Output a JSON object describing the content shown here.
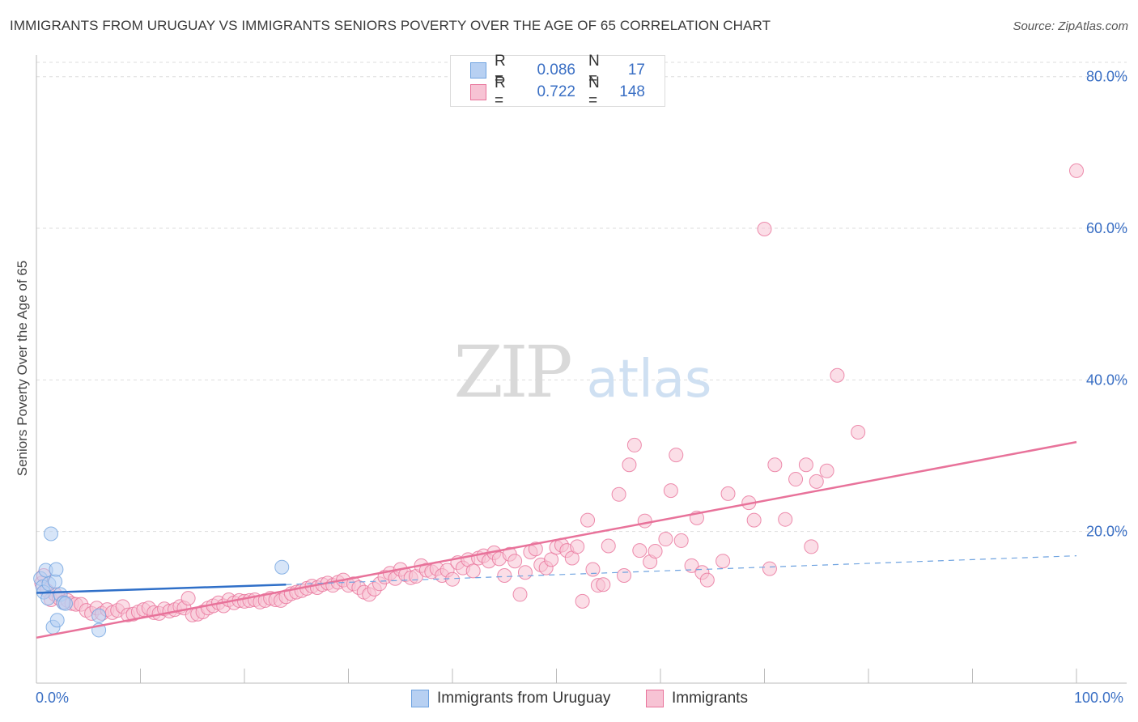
{
  "title": "IMMIGRANTS FROM URUGUAY VS IMMIGRANTS SENIORS POVERTY OVER THE AGE OF 65 CORRELATION CHART",
  "source": "Source: ZipAtlas.com",
  "watermark": {
    "zip": "ZIP",
    "atlas": "atlas"
  },
  "legend": {
    "rows": [
      {
        "r_label": "R =",
        "r_value": "0.086",
        "n_label": "N =",
        "n_value": "17"
      },
      {
        "r_label": "R =",
        "r_value": "0.722",
        "n_label": "N =",
        "n_value": "148"
      }
    ]
  },
  "x_tick_labels": {
    "min": "0.0%",
    "max": "100.0%"
  },
  "chart_data": {
    "type": "scatter",
    "title": "IMMIGRANTS FROM URUGUAY VS IMMIGRANTS SENIORS POVERTY OVER THE AGE OF 65 CORRELATION CHART",
    "xlabel": "",
    "ylabel": "Seniors Poverty Over the Age of 65",
    "xlim": [
      0,
      100
    ],
    "ylim": [
      0,
      82
    ],
    "y_ticks": [
      20,
      40,
      60,
      80
    ],
    "y_tick_labels": [
      "20.0%",
      "40.0%",
      "60.0%",
      "80.0%"
    ],
    "grid": true,
    "legend_position": "top-center",
    "series": [
      {
        "name": "Immigrants from Uruguay",
        "color": "#6fa3e0",
        "fill": "#b7d0f2",
        "r": 0.086,
        "n": 17,
        "trend": {
          "x0": 0,
          "y0": 11.9,
          "x1": 24,
          "y1": 13.0,
          "dash_x1": 100,
          "dash_y1": 16.8
        },
        "points": [
          [
            0.4,
            13.8
          ],
          [
            0.6,
            12.7
          ],
          [
            0.7,
            12.0
          ],
          [
            0.9,
            14.9
          ],
          [
            1.1,
            11.2
          ],
          [
            1.2,
            13.1
          ],
          [
            1.4,
            19.7
          ],
          [
            1.6,
            7.4
          ],
          [
            1.8,
            13.4
          ],
          [
            1.9,
            15.0
          ],
          [
            2.0,
            8.3
          ],
          [
            2.3,
            11.7
          ],
          [
            2.6,
            10.6
          ],
          [
            2.8,
            10.5
          ],
          [
            6.0,
            8.9
          ],
          [
            6.0,
            7.0
          ],
          [
            23.6,
            15.3
          ]
        ]
      },
      {
        "name": "Immigrants",
        "color": "#e8729a",
        "fill": "#f7c3d4",
        "r": 0.722,
        "n": 148,
        "trend": {
          "x0": 0,
          "y0": 6.0,
          "x1": 100,
          "y1": 31.8
        },
        "points": [
          [
            0.5,
            13.2
          ],
          [
            0.7,
            14.2
          ],
          [
            1.0,
            12.2
          ],
          [
            1.4,
            11.0
          ],
          [
            1.8,
            11.7
          ],
          [
            2.2,
            11.2
          ],
          [
            2.6,
            10.7
          ],
          [
            3.0,
            10.9
          ],
          [
            3.4,
            10.5
          ],
          [
            3.8,
            10.4
          ],
          [
            4.3,
            10.4
          ],
          [
            4.8,
            9.6
          ],
          [
            5.3,
            9.2
          ],
          [
            5.8,
            9.9
          ],
          [
            6.3,
            9.2
          ],
          [
            6.8,
            9.7
          ],
          [
            7.3,
            9.3
          ],
          [
            7.8,
            9.6
          ],
          [
            8.3,
            10.1
          ],
          [
            8.8,
            9.0
          ],
          [
            9.3,
            9.1
          ],
          [
            9.8,
            9.4
          ],
          [
            10.3,
            9.7
          ],
          [
            10.8,
            9.9
          ],
          [
            11.3,
            9.3
          ],
          [
            11.8,
            9.2
          ],
          [
            12.3,
            9.8
          ],
          [
            12.8,
            9.5
          ],
          [
            13.3,
            9.7
          ],
          [
            13.8,
            10.1
          ],
          [
            14.2,
            9.9
          ],
          [
            14.6,
            11.2
          ],
          [
            15.0,
            9.0
          ],
          [
            15.5,
            9.1
          ],
          [
            16.0,
            9.4
          ],
          [
            16.5,
            9.9
          ],
          [
            17.0,
            10.2
          ],
          [
            17.5,
            10.6
          ],
          [
            18.0,
            10.2
          ],
          [
            18.5,
            11.0
          ],
          [
            19.0,
            10.6
          ],
          [
            19.5,
            10.9
          ],
          [
            20.0,
            10.8
          ],
          [
            20.5,
            10.9
          ],
          [
            21.0,
            11.0
          ],
          [
            21.5,
            10.7
          ],
          [
            22.0,
            10.9
          ],
          [
            22.5,
            11.2
          ],
          [
            23.0,
            11.0
          ],
          [
            23.5,
            10.9
          ],
          [
            24.0,
            11.4
          ],
          [
            24.5,
            11.8
          ],
          [
            25.0,
            12.0
          ],
          [
            25.5,
            12.2
          ],
          [
            26.0,
            12.5
          ],
          [
            26.5,
            12.8
          ],
          [
            27.0,
            12.6
          ],
          [
            27.5,
            13.0
          ],
          [
            28.0,
            13.2
          ],
          [
            28.5,
            12.9
          ],
          [
            29.0,
            13.3
          ],
          [
            29.5,
            13.6
          ],
          [
            30.0,
            12.9
          ],
          [
            30.5,
            13.1
          ],
          [
            31.0,
            12.6
          ],
          [
            31.5,
            12.0
          ],
          [
            32.0,
            11.7
          ],
          [
            32.5,
            12.4
          ],
          [
            33.0,
            13.1
          ],
          [
            33.5,
            14.0
          ],
          [
            34.0,
            14.5
          ],
          [
            34.5,
            13.8
          ],
          [
            35.0,
            15.0
          ],
          [
            35.5,
            14.3
          ],
          [
            36.0,
            13.9
          ],
          [
            36.5,
            14.1
          ],
          [
            37.0,
            15.5
          ],
          [
            37.5,
            14.9
          ],
          [
            38.0,
            14.7
          ],
          [
            38.5,
            15.1
          ],
          [
            39.0,
            14.2
          ],
          [
            39.5,
            14.9
          ],
          [
            40.0,
            13.7
          ],
          [
            40.5,
            15.9
          ],
          [
            41.0,
            15.2
          ],
          [
            41.5,
            16.3
          ],
          [
            42.0,
            14.8
          ],
          [
            42.5,
            16.5
          ],
          [
            43.0,
            16.8
          ],
          [
            43.5,
            16.1
          ],
          [
            44.0,
            17.2
          ],
          [
            44.5,
            16.4
          ],
          [
            45.0,
            14.2
          ],
          [
            45.5,
            17.0
          ],
          [
            46.0,
            16.1
          ],
          [
            46.5,
            11.7
          ],
          [
            47.0,
            14.6
          ],
          [
            47.5,
            17.3
          ],
          [
            48.0,
            17.7
          ],
          [
            48.5,
            15.6
          ],
          [
            49.0,
            15.2
          ],
          [
            49.5,
            16.3
          ],
          [
            50.0,
            17.9
          ],
          [
            50.5,
            18.2
          ],
          [
            51.0,
            17.5
          ],
          [
            51.5,
            16.5
          ],
          [
            52.0,
            18.0
          ],
          [
            52.5,
            10.8
          ],
          [
            53.0,
            21.5
          ],
          [
            53.5,
            15.0
          ],
          [
            54.0,
            12.9
          ],
          [
            54.5,
            13.0
          ],
          [
            55.0,
            18.1
          ],
          [
            56.0,
            24.9
          ],
          [
            56.5,
            14.2
          ],
          [
            57.0,
            28.8
          ],
          [
            57.5,
            31.4
          ],
          [
            58.0,
            17.5
          ],
          [
            58.5,
            21.4
          ],
          [
            59.0,
            16.0
          ],
          [
            59.5,
            17.4
          ],
          [
            60.5,
            19.0
          ],
          [
            61.0,
            25.4
          ],
          [
            61.5,
            30.1
          ],
          [
            62.0,
            18.8
          ],
          [
            63.0,
            15.5
          ],
          [
            63.5,
            21.8
          ],
          [
            64.0,
            14.6
          ],
          [
            64.5,
            13.6
          ],
          [
            66.0,
            16.1
          ],
          [
            66.5,
            25.0
          ],
          [
            68.5,
            23.8
          ],
          [
            69.0,
            21.5
          ],
          [
            70.0,
            59.9
          ],
          [
            70.5,
            15.1
          ],
          [
            71.0,
            28.8
          ],
          [
            72.0,
            21.6
          ],
          [
            73.0,
            26.9
          ],
          [
            74.0,
            28.8
          ],
          [
            74.5,
            18.0
          ],
          [
            75.0,
            26.6
          ],
          [
            76.0,
            28.0
          ],
          [
            77.0,
            40.6
          ],
          [
            79.0,
            33.1
          ],
          [
            100.0,
            67.6
          ]
        ]
      }
    ]
  }
}
